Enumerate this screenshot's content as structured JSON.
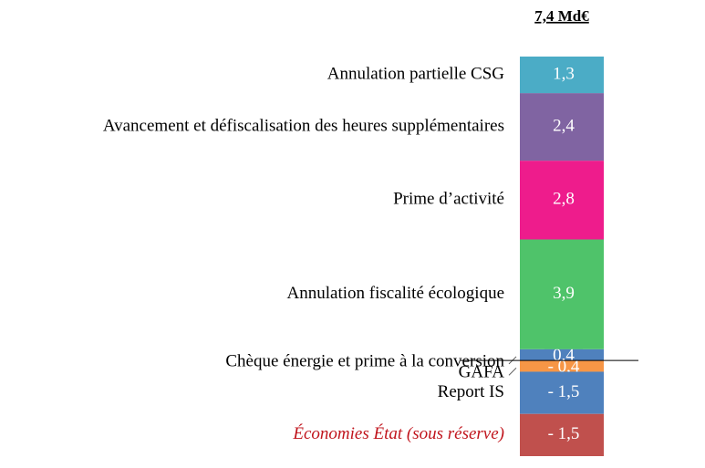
{
  "chart_data": {
    "type": "bar",
    "title": "7,4 Md€",
    "categories": [
      "Chèque énergie et prime à la conversion",
      "Annulation fiscalité écologique",
      "Prime d’activité",
      "Avancement et défiscalisation des heures supplémentaires",
      "Annulation partielle CSG",
      "GAFA",
      "Report IS",
      "Économies État (sous réserve)"
    ],
    "values": [
      0.4,
      3.9,
      2.8,
      2.4,
      1.3,
      -0.4,
      -1.5,
      -1.5
    ],
    "value_labels": [
      "0,4",
      "3,9",
      "2,8",
      "2,4",
      "1,3",
      "- 0,4",
      "- 1,5",
      "- 1,5"
    ],
    "colors": [
      "#4f81bd",
      "#4fc36a",
      "#ee1c8c",
      "#8064a2",
      "#4bacc6",
      "#f79646",
      "#4f81bd",
      "#c0504d"
    ]
  }
}
